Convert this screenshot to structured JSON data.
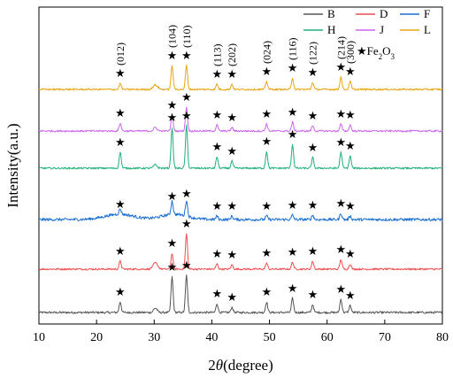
{
  "chart_data": {
    "type": "line",
    "title": "",
    "xlabel_prefix": "2",
    "xlabel_theta": "θ",
    "xlabel_suffix": "(degree)",
    "ylabel": "Intensity(a.u.)",
    "xlim": [
      10,
      80
    ],
    "x_ticks": [
      10,
      20,
      30,
      40,
      50,
      60,
      70,
      80
    ],
    "y_ticks": false,
    "grid": false,
    "legend_placement": "top-right",
    "marker_legend": {
      "symbol": "★",
      "label": "Fe",
      "sub1": "2",
      "mid": "O",
      "sub2": "3"
    },
    "peak_positions": [
      24.1,
      33.1,
      35.6,
      40.9,
      43.5,
      49.5,
      54.0,
      57.5,
      62.4,
      64.0
    ],
    "peak_labels": [
      {
        "x": 24.1,
        "text": "(012)"
      },
      {
        "x": 33.1,
        "text": "(104)"
      },
      {
        "x": 35.6,
        "text": "(110)"
      },
      {
        "x": 40.9,
        "text": "(113)"
      },
      {
        "x": 43.5,
        "text": "(202)"
      },
      {
        "x": 49.5,
        "text": "(024)"
      },
      {
        "x": 54.0,
        "text": "(116)"
      },
      {
        "x": 57.5,
        "text": "(122)"
      },
      {
        "x": 62.4,
        "text": "(214)"
      },
      {
        "x": 64.0,
        "text": "(300)"
      }
    ],
    "series": [
      {
        "name": "B",
        "color": "#555555",
        "baseline": 0.0,
        "noise": 1.2,
        "peak_heights": [
          12,
          40,
          42,
          10,
          6,
          12,
          16,
          9,
          15,
          8
        ],
        "humps": [
          {
            "x": 30.2,
            "h": 5,
            "w": 0.3
          }
        ]
      },
      {
        "name": "D",
        "color": "#ee4d4d",
        "baseline": 1.0,
        "noise": 1.0,
        "peak_heights": [
          9,
          18,
          40,
          6,
          5,
          7,
          8,
          9,
          11,
          6
        ],
        "humps": [
          {
            "x": 30.2,
            "h": 7,
            "w": 0.4
          }
        ]
      },
      {
        "name": "F",
        "color": "#1a6fd1",
        "baseline": 2.0,
        "noise": 1.6,
        "peak_heights": [
          6,
          15,
          18,
          4,
          4,
          4,
          5,
          5,
          7,
          4
        ],
        "humps": [
          {
            "x": 24.0,
            "h": 6,
            "w": 2.5
          },
          {
            "x": 33.5,
            "h": 6,
            "w": 2.2
          }
        ]
      },
      {
        "name": "H",
        "color": "#20b07a",
        "baseline": 3.0,
        "noise": 1.0,
        "peak_heights": [
          18,
          46,
          48,
          13,
          8,
          19,
          27,
          12,
          18,
          14
        ],
        "humps": [
          {
            "x": 30.2,
            "h": 4,
            "w": 0.3
          }
        ]
      },
      {
        "name": "J",
        "color": "#cc66ee",
        "baseline": 4.0,
        "noise": 1.0,
        "peak_heights": [
          9,
          18,
          27,
          7,
          4,
          8,
          10,
          6,
          8,
          7
        ],
        "humps": [
          {
            "x": 30.2,
            "h": 4,
            "w": 0.3
          }
        ]
      },
      {
        "name": "L",
        "color": "#e8a514",
        "baseline": 5.0,
        "noise": 1.0,
        "peak_heights": [
          7,
          27,
          27,
          6,
          6,
          9,
          13,
          8,
          14,
          9
        ],
        "humps": [
          {
            "x": 30.2,
            "h": 5,
            "w": 0.4
          }
        ]
      }
    ]
  }
}
